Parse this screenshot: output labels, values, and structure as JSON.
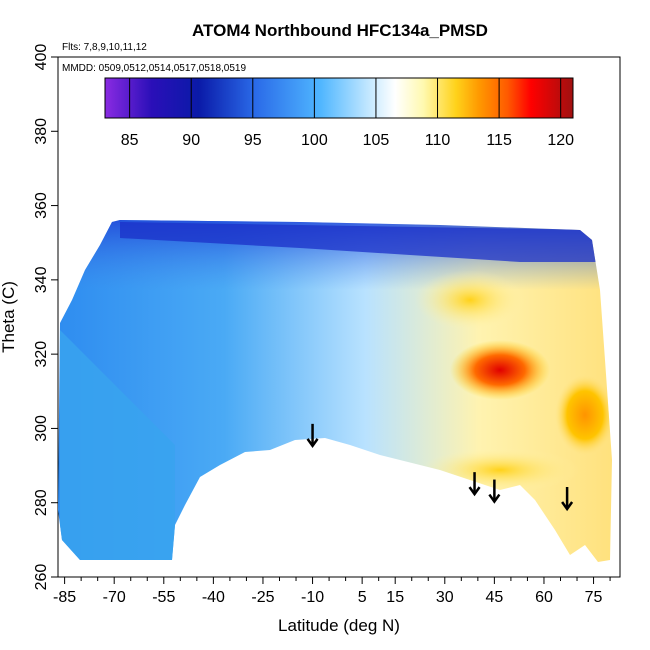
{
  "chart_data": {
    "type": "heatmap",
    "title": "ATOM4 Northbound HFC134a_PMSD",
    "flights_label": "Flts: 7,8,9,10,11,12",
    "dates_label": "MMDD: 0509,0512,0514,0517,0518,0519",
    "xlabel": "Latitude (deg N)",
    "ylabel": "Theta (C)",
    "xlim": [
      -87,
      83
    ],
    "ylim": [
      260,
      400
    ],
    "x_ticks": [
      -85,
      -70,
      -55,
      -40,
      -25,
      -10,
      5,
      15,
      30,
      45,
      60,
      75
    ],
    "x_tick_labels": [
      "-85",
      "-70",
      "-55",
      "-40",
      "-25",
      "-10",
      "5",
      "15",
      "30",
      "45",
      "60",
      "75"
    ],
    "y_ticks": [
      260,
      280,
      300,
      320,
      340,
      360,
      380,
      400
    ],
    "y_tick_labels": [
      "260",
      "280",
      "300",
      "320",
      "340",
      "360",
      "380",
      "400"
    ],
    "colorbar": {
      "range": [
        83,
        121
      ],
      "ticks": [
        85,
        90,
        95,
        100,
        105,
        110,
        115,
        120
      ],
      "tick_labels": [
        "85",
        "90",
        "95",
        "100",
        "105",
        "110",
        "115",
        "120"
      ],
      "placement": "top-inside"
    },
    "regions": [
      {
        "name": "upper-blue-band",
        "value": 92,
        "lat": [
          -70,
          80
        ],
        "theta": [
          340,
          358
        ]
      },
      {
        "name": "southern-midlevel",
        "value": 95,
        "lat": [
          -85,
          -10
        ],
        "theta": [
          280,
          340
        ]
      },
      {
        "name": "tropical-light",
        "value": 99,
        "lat": [
          -10,
          30
        ],
        "theta": [
          300,
          340
        ]
      },
      {
        "name": "midlat-yellow-upper",
        "value": 106,
        "lat": [
          30,
          60
        ],
        "theta": [
          325,
          340
        ]
      },
      {
        "name": "midlat-red-core",
        "value": 116,
        "lat": [
          45,
          60
        ],
        "theta": [
          315,
          325
        ]
      },
      {
        "name": "lower-yellow",
        "value": 105,
        "lat": [
          20,
          65
        ],
        "theta": [
          283,
          300
        ]
      },
      {
        "name": "arctic-orange",
        "value": 110,
        "lat": [
          70,
          82
        ],
        "theta": [
          295,
          310
        ]
      }
    ],
    "annotations": [
      {
        "type": "arrow",
        "lat": -10,
        "theta": 298
      },
      {
        "type": "arrow",
        "lat": 39,
        "theta": 285
      },
      {
        "type": "arrow",
        "lat": 45,
        "theta": 283
      },
      {
        "type": "arrow",
        "lat": 67,
        "theta": 281
      }
    ]
  }
}
